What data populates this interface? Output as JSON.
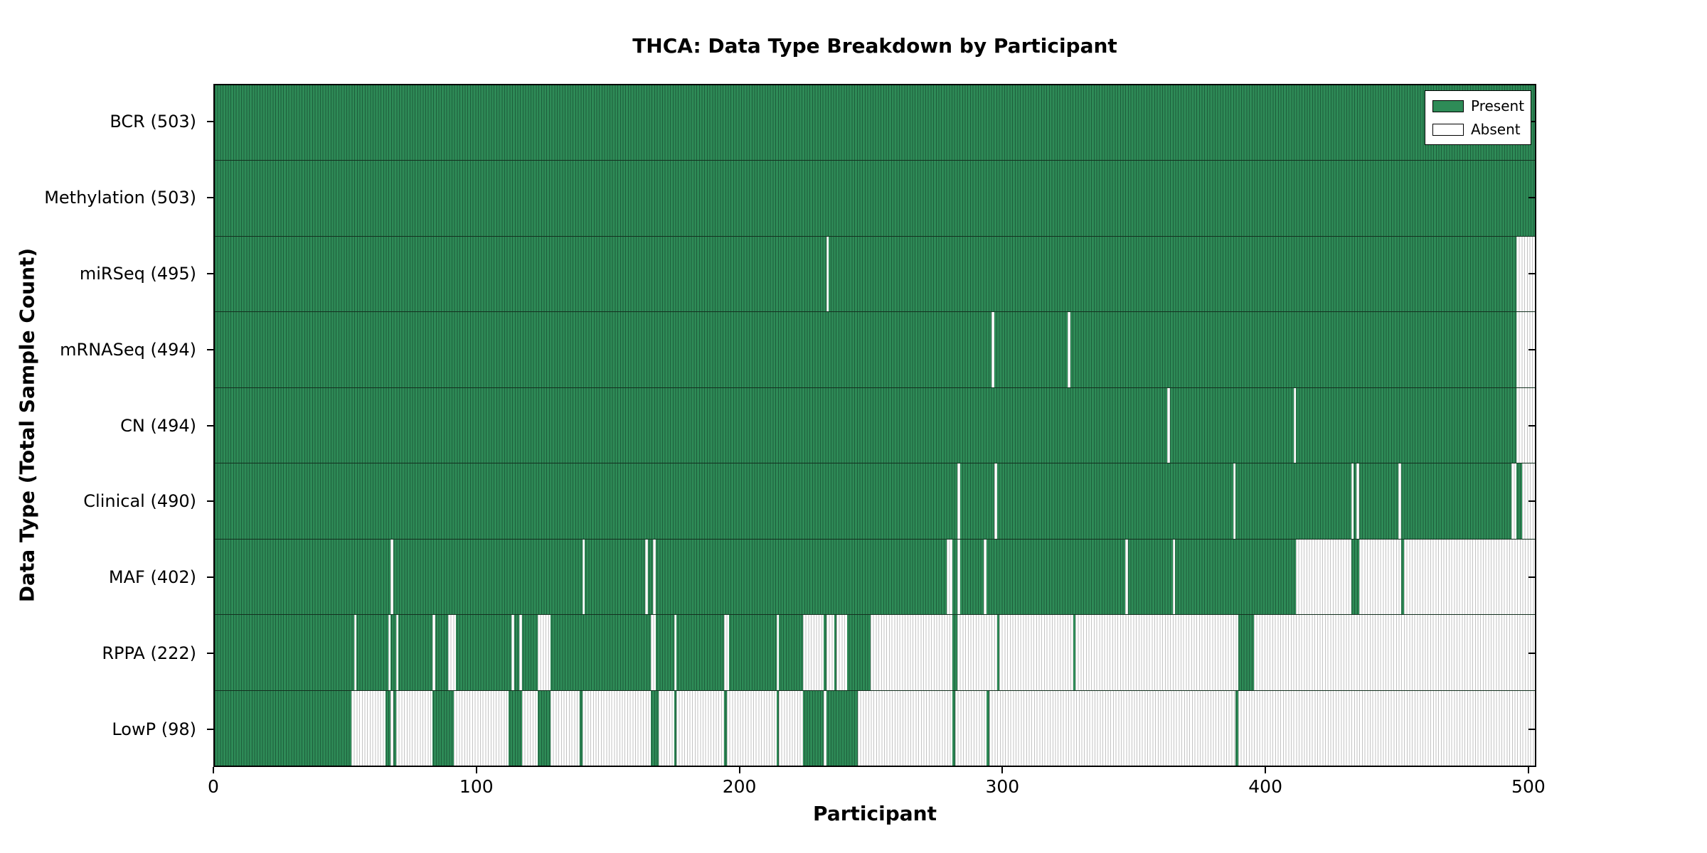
{
  "chart_data": {
    "type": "heatmap",
    "title": "THCA: Data Type Breakdown by Participant",
    "xlabel": "Participant",
    "ylabel": "Data Type (Total Sample Count)",
    "x_ticks": [
      0,
      100,
      200,
      300,
      400,
      500
    ],
    "x_max": 503,
    "grid": false,
    "legend_position": "upper-right",
    "legend": [
      {
        "label": "Present",
        "color": "#2e8b57"
      },
      {
        "label": "Absent",
        "color": "#ffffff"
      }
    ],
    "colors": {
      "present": "#2e8b57",
      "present_stripe": "#14502f",
      "absent": "#ffffff",
      "absent_stripe": "#c3c3c3",
      "axis": "#000000"
    },
    "rows": [
      {
        "name": "bcr",
        "label": "BCR (503)",
        "total_samples": 503,
        "absent_ranges": []
      },
      {
        "name": "methylation",
        "label": "Methylation (503)",
        "total_samples": 503,
        "absent_ranges": []
      },
      {
        "name": "mirseq",
        "label": "miRSeq (495)",
        "total_samples": 495,
        "absent_ranges": [
          [
            233,
            234
          ],
          [
            496,
            503
          ]
        ]
      },
      {
        "name": "mrnaseq",
        "label": "mRNASeq (494)",
        "total_samples": 494,
        "absent_ranges": [
          [
            296,
            297
          ],
          [
            325,
            326
          ],
          [
            496,
            503
          ]
        ]
      },
      {
        "name": "cn",
        "label": "CN (494)",
        "total_samples": 494,
        "absent_ranges": [
          [
            363,
            364
          ],
          [
            411,
            412
          ],
          [
            496,
            503
          ]
        ]
      },
      {
        "name": "clinical",
        "label": "Clinical (490)",
        "total_samples": 490,
        "absent_ranges": [
          [
            283,
            284
          ],
          [
            297,
            298
          ],
          [
            388,
            389
          ],
          [
            433,
            434
          ],
          [
            435,
            436
          ],
          [
            451,
            452
          ],
          [
            494,
            496
          ],
          [
            498,
            503
          ]
        ]
      },
      {
        "name": "maf",
        "label": "MAF (402)",
        "total_samples": 402,
        "absent_ranges": [
          [
            67,
            68
          ],
          [
            140,
            141
          ],
          [
            164,
            165
          ],
          [
            167,
            168
          ],
          [
            279,
            281
          ],
          [
            283,
            284
          ],
          [
            293,
            294
          ],
          [
            347,
            348
          ],
          [
            365,
            366
          ],
          [
            412,
            433
          ],
          [
            436,
            452
          ],
          [
            453,
            503
          ]
        ]
      },
      {
        "name": "rppa",
        "label": "RPPA (222)",
        "total_samples": 222,
        "absent_ranges": [
          [
            53,
            54
          ],
          [
            66,
            67
          ],
          [
            69,
            70
          ],
          [
            83,
            84
          ],
          [
            89,
            92
          ],
          [
            113,
            114
          ],
          [
            116,
            117
          ],
          [
            123,
            128
          ],
          [
            166,
            168
          ],
          [
            175,
            176
          ],
          [
            194,
            196
          ],
          [
            214,
            215
          ],
          [
            224,
            232
          ],
          [
            233,
            236
          ],
          [
            237,
            241
          ],
          [
            250,
            281
          ],
          [
            283,
            298
          ],
          [
            299,
            327
          ],
          [
            328,
            390
          ],
          [
            396,
            503
          ]
        ]
      },
      {
        "name": "lowp",
        "label": "LowP (98)",
        "total_samples": 98,
        "absent_ranges": [
          [
            52,
            65
          ],
          [
            67,
            68
          ],
          [
            69,
            83
          ],
          [
            91,
            112
          ],
          [
            117,
            123
          ],
          [
            128,
            139
          ],
          [
            140,
            166
          ],
          [
            169,
            175
          ],
          [
            176,
            194
          ],
          [
            195,
            214
          ],
          [
            215,
            224
          ],
          [
            232,
            233
          ],
          [
            245,
            281
          ],
          [
            282,
            294
          ],
          [
            295,
            389
          ],
          [
            390,
            503
          ]
        ]
      }
    ]
  }
}
